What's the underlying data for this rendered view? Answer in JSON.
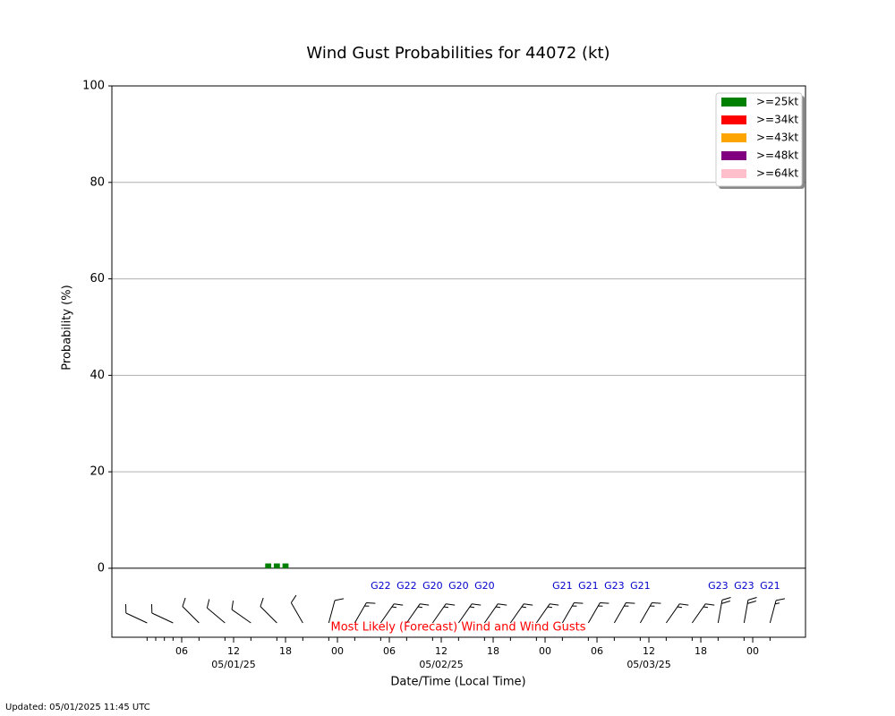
{
  "chart_data": {
    "type": "bar",
    "title": "Wind Gust Probabilities for 44072 (kt)",
    "y_label": "Probability (%)",
    "x_label": "Date/Time (Local Time)",
    "annotation": "Most Likely (Forecast) Wind and Wind Gusts",
    "footer": "Updated: 05/01/2025 11:45 UTC",
    "xlim": [
      -2.07,
      78.1
    ],
    "ylim": [
      -14.3,
      100
    ],
    "yticks": [
      0,
      20,
      40,
      60,
      80,
      100
    ],
    "grid": true,
    "legend": "upper right",
    "xticks": [
      {
        "value": 6,
        "label": "06"
      },
      {
        "value": 12,
        "label": "12"
      },
      {
        "value": 18,
        "label": "18"
      },
      {
        "value": 24,
        "label": "00"
      },
      {
        "value": 30,
        "label": "06"
      },
      {
        "value": 36,
        "label": "12"
      },
      {
        "value": 42,
        "label": "18"
      },
      {
        "value": 48,
        "label": "00"
      },
      {
        "value": 54,
        "label": "06"
      },
      {
        "value": 60,
        "label": "12"
      },
      {
        "value": 66,
        "label": "18"
      },
      {
        "value": 72,
        "label": "00"
      }
    ],
    "x_minor_ticks": [
      2,
      3,
      4,
      5,
      8,
      11,
      14,
      17,
      20,
      23,
      26,
      29,
      32,
      35,
      38,
      41,
      44,
      47,
      50,
      53,
      56,
      59,
      62,
      65,
      68,
      71,
      74
    ],
    "x_day_labels": [
      {
        "value": 12,
        "label": "05/01/25"
      },
      {
        "value": 36,
        "label": "05/02/25"
      },
      {
        "value": 60,
        "label": "05/03/25"
      }
    ],
    "series": [
      {
        "name": ">=25kt",
        "color": "#008000",
        "x": [
          16,
          17,
          18
        ],
        "values": [
          1,
          1,
          1
        ]
      },
      {
        "name": ">=34kt",
        "color": "#ff0000",
        "x": [],
        "values": []
      },
      {
        "name": ">=43kt",
        "color": "#ffa500",
        "x": [],
        "values": []
      },
      {
        "name": ">=48kt",
        "color": "#800080",
        "x": [],
        "values": []
      },
      {
        "name": ">=64kt",
        "color": "#ffc0cb",
        "x": [],
        "values": []
      }
    ],
    "wind": {
      "x": [
        2,
        5,
        8,
        11,
        14,
        17,
        20,
        23,
        26,
        29,
        32,
        35,
        38,
        41,
        44,
        47,
        50,
        53,
        56,
        59,
        62,
        65,
        68,
        71,
        74
      ],
      "direction": [
        295,
        295,
        315,
        310,
        305,
        315,
        330,
        15,
        30,
        35,
        35,
        35,
        35,
        35,
        35,
        35,
        30,
        30,
        30,
        30,
        35,
        35,
        10,
        10,
        15
      ],
      "speed": [
        10,
        10,
        10,
        10,
        10,
        10,
        10,
        10,
        15,
        15,
        15,
        15,
        15,
        15,
        15,
        15,
        15,
        15,
        15,
        15,
        15,
        15,
        20,
        20,
        15
      ],
      "gusts": [
        null,
        null,
        null,
        null,
        null,
        null,
        null,
        null,
        null,
        22,
        22,
        20,
        20,
        20,
        null,
        null,
        21,
        21,
        23,
        21,
        null,
        null,
        23,
        23,
        21
      ],
      "value_labels": [
        null,
        null,
        null,
        null,
        null,
        null,
        null,
        null,
        null,
        "G22",
        "G22",
        "G20",
        "G20",
        "G20",
        null,
        null,
        "G21",
        "G21",
        "G23",
        "G21",
        null,
        null,
        "G23",
        "G23",
        "G21"
      ]
    }
  }
}
